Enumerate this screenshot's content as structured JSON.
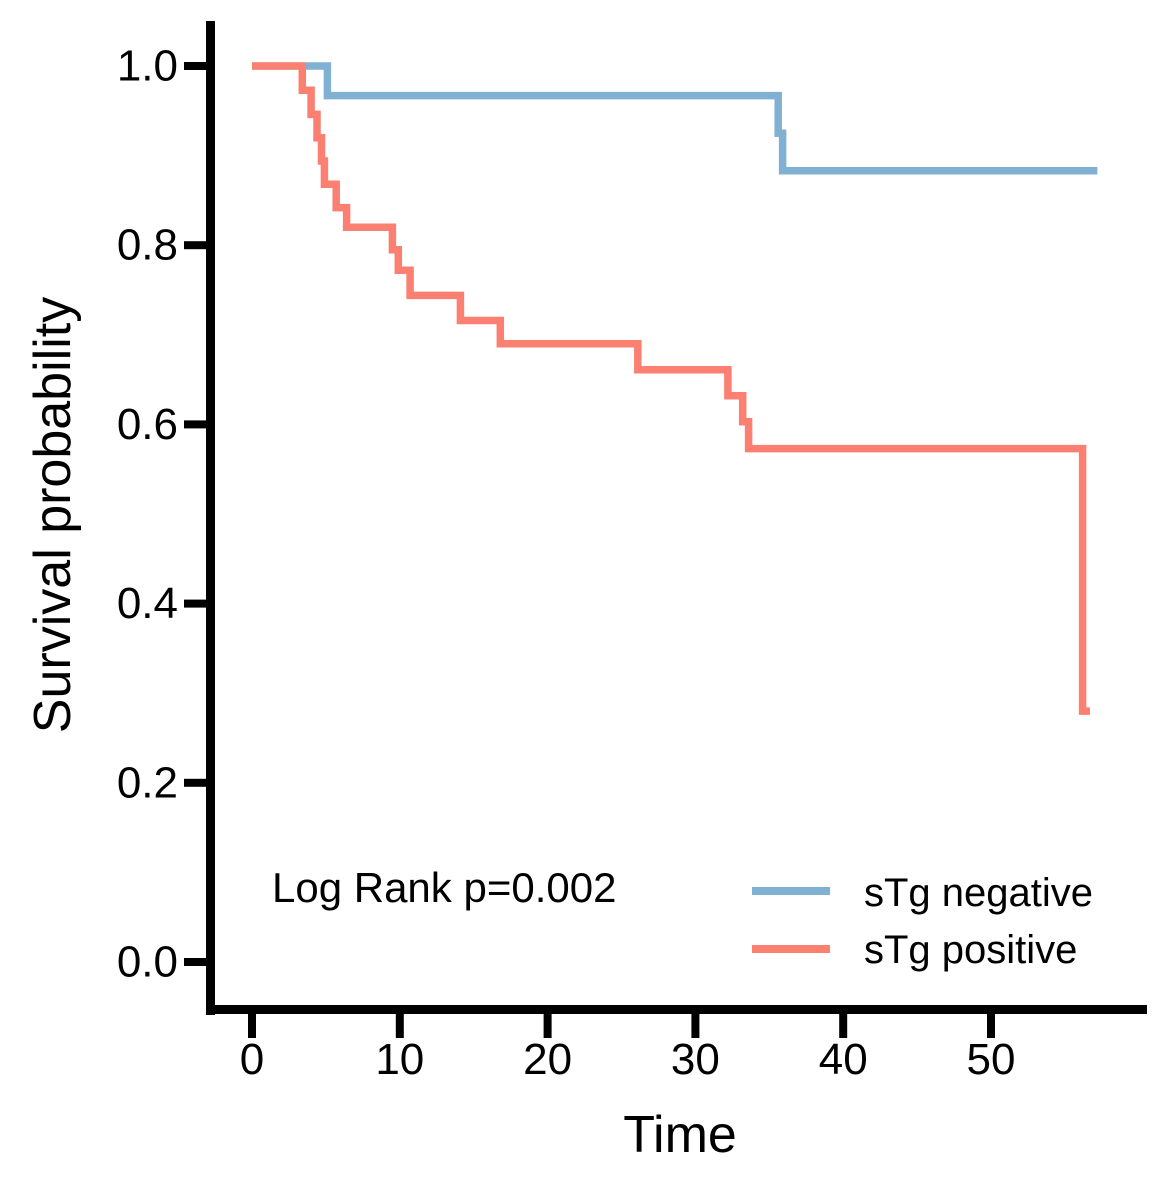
{
  "chart_data": {
    "type": "line",
    "subtype": "kaplan-meier-step",
    "title": "",
    "xlabel": "Time",
    "ylabel": "Survival probability",
    "annotation": "Log Rank p=0.002",
    "xlim": [
      0,
      57.5
    ],
    "ylim": [
      0.0,
      1.0
    ],
    "xticks": [
      "0",
      "10",
      "20",
      "30",
      "40",
      "50"
    ],
    "yticks": [
      "0.0",
      "0.2",
      "0.4",
      "0.6",
      "0.8",
      "1.0"
    ],
    "grid": false,
    "legend_position": "inside-bottom-right",
    "series": [
      {
        "name": "sTg negative",
        "color": "#80B1D3",
        "end_time": 57.2,
        "steps": [
          [
            0.0,
            1.0
          ],
          [
            5.1,
            0.967
          ],
          [
            35.6,
            0.925
          ],
          [
            35.9,
            0.883
          ]
        ]
      },
      {
        "name": "sTg positive",
        "color": "#FB8072",
        "end_time": 56.7,
        "steps": [
          [
            0.0,
            1.0
          ],
          [
            3.4,
            0.973
          ],
          [
            4.0,
            0.946
          ],
          [
            4.4,
            0.92
          ],
          [
            4.7,
            0.894
          ],
          [
            4.9,
            0.868
          ],
          [
            5.7,
            0.842
          ],
          [
            6.4,
            0.82
          ],
          [
            9.5,
            0.795
          ],
          [
            9.9,
            0.772
          ],
          [
            10.7,
            0.744
          ],
          [
            14.1,
            0.716
          ],
          [
            16.8,
            0.69
          ],
          [
            26.1,
            0.661
          ],
          [
            32.2,
            0.632
          ],
          [
            33.2,
            0.603
          ],
          [
            33.6,
            0.573
          ],
          [
            56.2,
            0.28
          ]
        ]
      }
    ]
  }
}
